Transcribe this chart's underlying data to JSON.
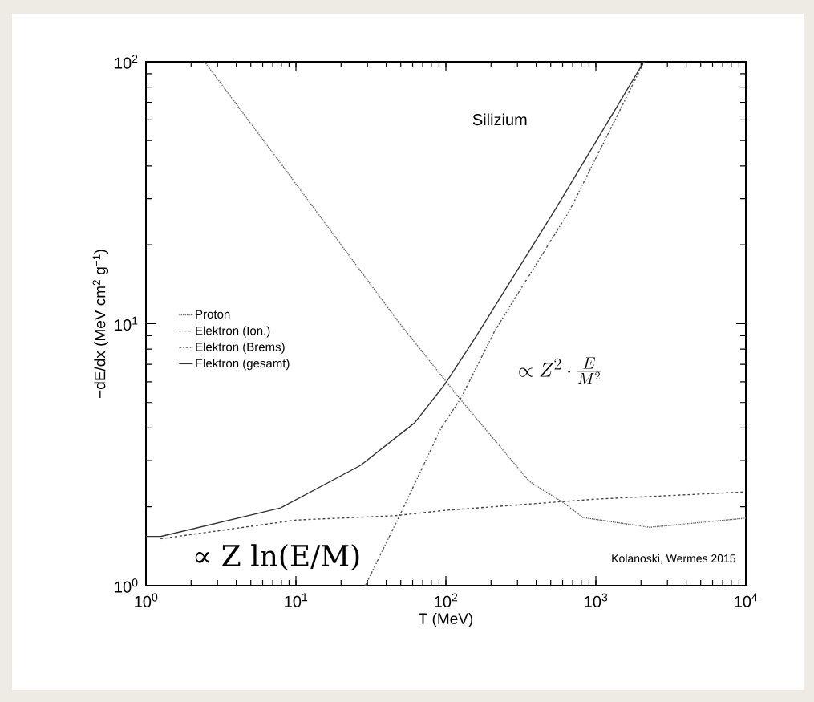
{
  "chart_data": {
    "type": "line",
    "title": "Silizium",
    "xlabel": "T (MeV)",
    "ylabel": "−dE/dx (MeV cm$^{2}$ g$^{−1}$)",
    "log": "xy",
    "xlim": [
      1,
      10000
    ],
    "ylim": [
      1,
      100
    ],
    "xticks": [
      {
        "value": 1,
        "label": "10$^{0}$"
      },
      {
        "value": 10,
        "label": "10$^{1}$"
      },
      {
        "value": 100,
        "label": "10$^{2}$"
      },
      {
        "value": 1000,
        "label": "10$^{3}$"
      },
      {
        "value": 10000,
        "label": "10$^{4}$"
      }
    ],
    "yticks": [
      {
        "value": 1,
        "label": "10$^{0}$"
      },
      {
        "value": 10,
        "label": "10$^{1}$"
      },
      {
        "value": 100,
        "label": "10$^{2}$"
      }
    ],
    "legend": "left",
    "grid": false,
    "series": [
      {
        "name": "Proton",
        "color": "#666666",
        "line_style": "dotted",
        "x": [
          2.46,
          7.9,
          48,
          123,
          360,
          611,
          820,
          2280,
          10000
        ],
        "values": [
          100,
          41,
          10.2,
          5.2,
          2.5,
          2.07,
          1.82,
          1.67,
          1.81
        ]
      },
      {
        "name": "Elektron (Ion.)",
        "color": "#444444",
        "line_style": "dashed",
        "x": [
          1.25,
          10,
          46,
          100,
          1000,
          10000
        ],
        "values": [
          1.51,
          1.78,
          1.85,
          1.94,
          2.14,
          2.28
        ]
      },
      {
        "name": "Elektron (Brems)",
        "color": "#555555",
        "line_style": "dashdot",
        "x": [
          29,
          50,
          93,
          126,
          212,
          667,
          2100
        ],
        "values": [
          1,
          1.89,
          4.0,
          5.2,
          9.4,
          27,
          100
        ]
      },
      {
        "name": "Elektron (gesamt)",
        "color": "#333333",
        "line_style": "solid",
        "x": [
          1,
          1.25,
          7.9,
          27,
          62,
          99,
          158,
          540,
          2090
        ],
        "values": [
          1.54,
          1.54,
          1.98,
          2.88,
          4.19,
          5.9,
          8.9,
          27.5,
          100
        ]
      }
    ],
    "annotations": [
      "Kolanoski, Wermes 2015",
      "∝ Z ln(E/M)",
      "\\propto Z^{2}\\cdot\\frac{E}{M^{2}}"
    ]
  }
}
